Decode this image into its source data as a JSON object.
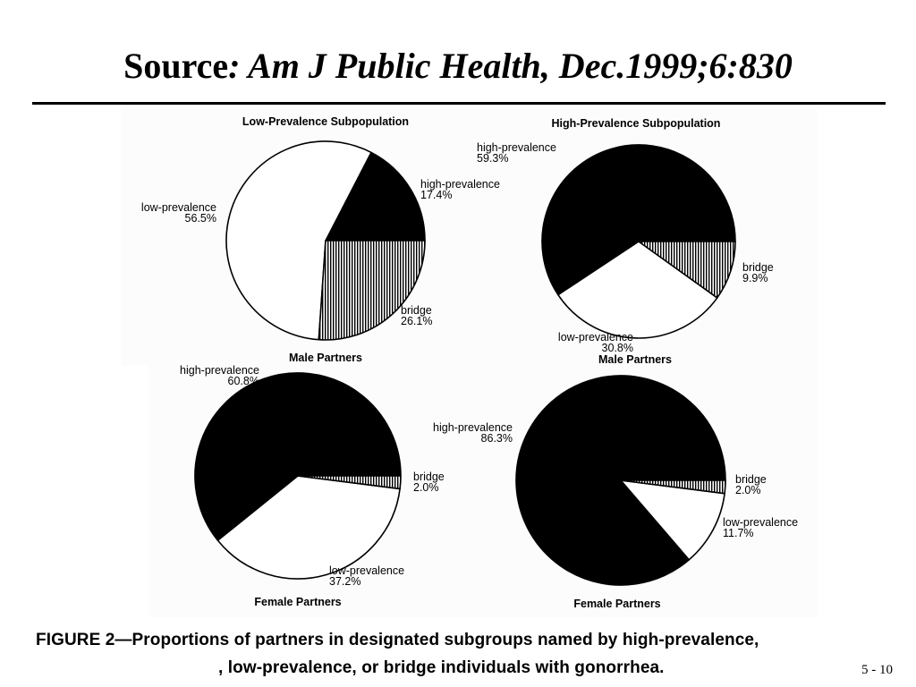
{
  "slide": {
    "title_prefix": "Source",
    "title_rest": ": Am J Public Health, Dec.1999;6:830",
    "page_number": "5 - 10"
  },
  "caption": {
    "line1": "FIGURE 2—Proportions of partners in designated subgroups named by high-prevalence,",
    "line2": ", low-prevalence, or bridge   individuals with gonorrhea."
  },
  "colors": {
    "high-prevalence": "#000000",
    "low-prevalence": "#ffffff",
    "bridge": "hatched-vertical"
  },
  "chart_data": [
    {
      "type": "pie",
      "title": "Low-Prevalence Subpopulation",
      "subtitle": "",
      "slices": [
        {
          "name": "high-prevalence",
          "label": "17.4%",
          "value": 17.4
        },
        {
          "name": "bridge",
          "label": "26.1%",
          "value": 26.1
        },
        {
          "name": "low-prevalence",
          "label": "56.5%",
          "value": 56.5
        }
      ]
    },
    {
      "type": "pie",
      "title": "High-Prevalence Subpopulation",
      "subtitle": "Male Partners",
      "slices": [
        {
          "name": "high-prevalence",
          "label": "59.3%",
          "value": 59.3
        },
        {
          "name": "bridge",
          "label": "9.9%",
          "value": 9.9
        },
        {
          "name": "low-prevalence",
          "label": "30.8%",
          "value": 30.8
        }
      ]
    },
    {
      "type": "pie",
      "title": "Male Partners",
      "subtitle": "Female Partners",
      "slices": [
        {
          "name": "high-prevalence",
          "label": "60.8%",
          "value": 60.8
        },
        {
          "name": "bridge",
          "label": "2.0%",
          "value": 2.0
        },
        {
          "name": "low-prevalence",
          "label": "37.2%",
          "value": 37.2
        }
      ]
    },
    {
      "type": "pie",
      "title": "",
      "subtitle": "Female Partners",
      "slices": [
        {
          "name": "high-prevalence",
          "label": "86.3%",
          "value": 86.3
        },
        {
          "name": "bridge",
          "label": "2.0%",
          "value": 2.0
        },
        {
          "name": "low-prevalence",
          "label": "11.7%",
          "value": 11.7
        }
      ]
    }
  ]
}
